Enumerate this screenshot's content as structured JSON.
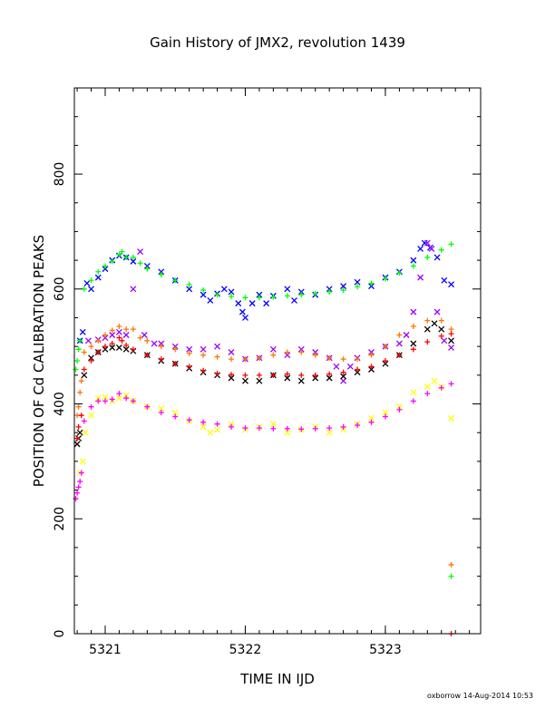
{
  "chart_data": {
    "type": "scatter",
    "title": "Gain History of JMX2, revolution 1439",
    "xlabel": "TIME IN IJD",
    "ylabel": "POSITION OF Cd CALIBRATION PEAKS",
    "xlim": [
      5320.78,
      5323.68
    ],
    "ylim": [
      0,
      950
    ],
    "x_ticks": [
      5321,
      5322,
      5323
    ],
    "y_ticks": [
      0,
      200,
      400,
      600,
      800
    ],
    "grid": false,
    "legend": "none",
    "footer": "oxborrow 14-Aug-2014 10:53",
    "series": [
      {
        "color": "#0000ff",
        "marker": "x",
        "points": [
          [
            5320.82,
            510
          ],
          [
            5320.84,
            525
          ],
          [
            5320.87,
            610
          ],
          [
            5320.9,
            600
          ],
          [
            5320.95,
            620
          ],
          [
            5321.0,
            635
          ],
          [
            5321.05,
            650
          ],
          [
            5321.1,
            658
          ],
          [
            5321.15,
            655
          ],
          [
            5321.2,
            648
          ],
          [
            5321.3,
            640
          ],
          [
            5321.4,
            630
          ],
          [
            5321.5,
            615
          ],
          [
            5321.6,
            600
          ],
          [
            5321.7,
            590
          ],
          [
            5321.75,
            580
          ],
          [
            5321.8,
            592
          ],
          [
            5321.85,
            600
          ],
          [
            5321.9,
            595
          ],
          [
            5321.95,
            575
          ],
          [
            5321.98,
            560
          ],
          [
            5322.0,
            550
          ],
          [
            5322.05,
            575
          ],
          [
            5322.1,
            590
          ],
          [
            5322.15,
            575
          ],
          [
            5322.2,
            588
          ],
          [
            5322.3,
            600
          ],
          [
            5322.35,
            580
          ],
          [
            5322.4,
            595
          ],
          [
            5322.5,
            590
          ],
          [
            5322.6,
            600
          ],
          [
            5322.7,
            605
          ],
          [
            5322.8,
            612
          ],
          [
            5322.9,
            605
          ],
          [
            5323.0,
            620
          ],
          [
            5323.1,
            630
          ],
          [
            5323.2,
            650
          ],
          [
            5323.25,
            670
          ],
          [
            5323.28,
            680
          ],
          [
            5323.32,
            672
          ],
          [
            5323.37,
            655
          ],
          [
            5323.42,
            615
          ],
          [
            5323.47,
            608
          ]
        ]
      },
      {
        "color": "#00ff00",
        "marker": "+",
        "points": [
          [
            5320.79,
            460
          ],
          [
            5320.8,
            475
          ],
          [
            5320.81,
            495
          ],
          [
            5320.82,
            510
          ],
          [
            5320.85,
            600
          ],
          [
            5320.9,
            615
          ],
          [
            5320.95,
            630
          ],
          [
            5321.0,
            640
          ],
          [
            5321.05,
            648
          ],
          [
            5321.1,
            660
          ],
          [
            5321.12,
            665
          ],
          [
            5321.15,
            655
          ],
          [
            5321.2,
            655
          ],
          [
            5321.25,
            645
          ],
          [
            5321.3,
            635
          ],
          [
            5321.4,
            625
          ],
          [
            5321.5,
            615
          ],
          [
            5321.6,
            608
          ],
          [
            5321.7,
            598
          ],
          [
            5321.8,
            590
          ],
          [
            5321.9,
            587
          ],
          [
            5322.0,
            585
          ],
          [
            5322.1,
            585
          ],
          [
            5322.2,
            586
          ],
          [
            5322.3,
            588
          ],
          [
            5322.4,
            590
          ],
          [
            5322.5,
            592
          ],
          [
            5322.6,
            595
          ],
          [
            5322.7,
            598
          ],
          [
            5322.8,
            604
          ],
          [
            5322.9,
            610
          ],
          [
            5323.0,
            618
          ],
          [
            5323.1,
            628
          ],
          [
            5323.2,
            640
          ],
          [
            5323.3,
            655
          ],
          [
            5323.4,
            668
          ],
          [
            5323.47,
            678
          ],
          [
            5323.47,
            100
          ]
        ]
      },
      {
        "color": "#9900ff",
        "marker": "x",
        "points": [
          [
            5320.88,
            510
          ],
          [
            5320.95,
            512
          ],
          [
            5321.0,
            515
          ],
          [
            5321.05,
            520
          ],
          [
            5321.1,
            525
          ],
          [
            5321.15,
            520
          ],
          [
            5321.2,
            600
          ],
          [
            5321.25,
            665
          ],
          [
            5321.28,
            520
          ],
          [
            5321.35,
            505
          ],
          [
            5321.4,
            505
          ],
          [
            5321.5,
            500
          ],
          [
            5321.6,
            495
          ],
          [
            5321.7,
            495
          ],
          [
            5321.8,
            500
          ],
          [
            5321.9,
            490
          ],
          [
            5322.0,
            478
          ],
          [
            5322.1,
            480
          ],
          [
            5322.2,
            495
          ],
          [
            5322.3,
            485
          ],
          [
            5322.4,
            495
          ],
          [
            5322.5,
            490
          ],
          [
            5322.6,
            480
          ],
          [
            5322.65,
            465
          ],
          [
            5322.7,
            440
          ],
          [
            5322.75,
            465
          ],
          [
            5322.8,
            480
          ],
          [
            5322.9,
            490
          ],
          [
            5323.0,
            500
          ],
          [
            5323.1,
            505
          ],
          [
            5323.15,
            520
          ],
          [
            5323.2,
            560
          ],
          [
            5323.25,
            620
          ],
          [
            5323.3,
            680
          ],
          [
            5323.33,
            670
          ],
          [
            5323.37,
            560
          ],
          [
            5323.42,
            510
          ],
          [
            5323.47,
            498
          ]
        ]
      },
      {
        "color": "#000000",
        "marker": "x",
        "points": [
          [
            5320.8,
            330
          ],
          [
            5320.81,
            340
          ],
          [
            5320.82,
            350
          ],
          [
            5320.85,
            450
          ],
          [
            5320.9,
            480
          ],
          [
            5320.95,
            490
          ],
          [
            5321.0,
            495
          ],
          [
            5321.05,
            498
          ],
          [
            5321.1,
            498
          ],
          [
            5321.15,
            495
          ],
          [
            5321.2,
            492
          ],
          [
            5321.3,
            485
          ],
          [
            5321.4,
            475
          ],
          [
            5321.5,
            470
          ],
          [
            5321.6,
            462
          ],
          [
            5321.7,
            455
          ],
          [
            5321.8,
            450
          ],
          [
            5321.9,
            445
          ],
          [
            5322.0,
            440
          ],
          [
            5322.1,
            440
          ],
          [
            5322.2,
            450
          ],
          [
            5322.3,
            445
          ],
          [
            5322.4,
            440
          ],
          [
            5322.5,
            445
          ],
          [
            5322.6,
            445
          ],
          [
            5322.7,
            448
          ],
          [
            5322.8,
            455
          ],
          [
            5322.9,
            460
          ],
          [
            5323.0,
            470
          ],
          [
            5323.1,
            485
          ],
          [
            5323.2,
            505
          ],
          [
            5323.3,
            530
          ],
          [
            5323.35,
            540
          ],
          [
            5323.4,
            530
          ],
          [
            5323.47,
            510
          ]
        ]
      },
      {
        "color": "#ff7700",
        "marker": "+",
        "points": [
          [
            5320.8,
            380
          ],
          [
            5320.81,
            395
          ],
          [
            5320.82,
            420
          ],
          [
            5320.83,
            440
          ],
          [
            5320.85,
            490
          ],
          [
            5320.9,
            500
          ],
          [
            5320.95,
            510
          ],
          [
            5321.0,
            520
          ],
          [
            5321.05,
            528
          ],
          [
            5321.1,
            535
          ],
          [
            5321.15,
            530
          ],
          [
            5321.2,
            530
          ],
          [
            5321.25,
            515
          ],
          [
            5321.3,
            510
          ],
          [
            5321.4,
            500
          ],
          [
            5321.5,
            495
          ],
          [
            5321.6,
            488
          ],
          [
            5321.7,
            485
          ],
          [
            5321.8,
            482
          ],
          [
            5321.9,
            478
          ],
          [
            5322.0,
            478
          ],
          [
            5322.1,
            480
          ],
          [
            5322.2,
            485
          ],
          [
            5322.3,
            490
          ],
          [
            5322.4,
            490
          ],
          [
            5322.5,
            485
          ],
          [
            5322.6,
            480
          ],
          [
            5322.7,
            478
          ],
          [
            5322.8,
            478
          ],
          [
            5322.9,
            485
          ],
          [
            5323.0,
            500
          ],
          [
            5323.1,
            520
          ],
          [
            5323.2,
            535
          ],
          [
            5323.3,
            545
          ],
          [
            5323.4,
            545
          ],
          [
            5323.47,
            530
          ],
          [
            5323.47,
            120
          ]
        ]
      },
      {
        "color": "#ff0000",
        "marker": "+",
        "points": [
          [
            5320.8,
            340
          ],
          [
            5320.81,
            360
          ],
          [
            5320.83,
            380
          ],
          [
            5320.85,
            460
          ],
          [
            5320.9,
            475
          ],
          [
            5320.95,
            490
          ],
          [
            5321.0,
            500
          ],
          [
            5321.05,
            505
          ],
          [
            5321.1,
            515
          ],
          [
            5321.12,
            510
          ],
          [
            5321.15,
            502
          ],
          [
            5321.2,
            495
          ],
          [
            5321.3,
            485
          ],
          [
            5321.4,
            478
          ],
          [
            5321.5,
            470
          ],
          [
            5321.6,
            465
          ],
          [
            5321.7,
            458
          ],
          [
            5321.8,
            453
          ],
          [
            5321.9,
            451
          ],
          [
            5322.0,
            450
          ],
          [
            5322.1,
            450
          ],
          [
            5322.2,
            450
          ],
          [
            5322.3,
            452
          ],
          [
            5322.4,
            450
          ],
          [
            5322.5,
            450
          ],
          [
            5322.6,
            452
          ],
          [
            5322.7,
            455
          ],
          [
            5322.8,
            460
          ],
          [
            5322.9,
            465
          ],
          [
            5323.0,
            475
          ],
          [
            5323.1,
            485
          ],
          [
            5323.2,
            495
          ],
          [
            5323.3,
            508
          ],
          [
            5323.4,
            518
          ],
          [
            5323.47,
            522
          ],
          [
            5323.47,
            0
          ]
        ]
      },
      {
        "color": "#ffff00",
        "marker": "x",
        "points": [
          [
            5320.82,
            280
          ],
          [
            5320.84,
            300
          ],
          [
            5320.86,
            350
          ],
          [
            5320.9,
            380
          ],
          [
            5320.95,
            410
          ],
          [
            5321.0,
            412
          ],
          [
            5321.05,
            405
          ],
          [
            5321.1,
            410
          ],
          [
            5321.15,
            415
          ],
          [
            5321.2,
            405
          ],
          [
            5321.3,
            395
          ],
          [
            5321.4,
            392
          ],
          [
            5321.5,
            385
          ],
          [
            5321.6,
            370
          ],
          [
            5321.7,
            360
          ],
          [
            5321.75,
            350
          ],
          [
            5321.8,
            355
          ],
          [
            5321.9,
            365
          ],
          [
            5322.0,
            355
          ],
          [
            5322.1,
            360
          ],
          [
            5322.2,
            365
          ],
          [
            5322.3,
            350
          ],
          [
            5322.4,
            355
          ],
          [
            5322.5,
            360
          ],
          [
            5322.6,
            350
          ],
          [
            5322.7,
            355
          ],
          [
            5322.8,
            365
          ],
          [
            5322.9,
            375
          ],
          [
            5323.0,
            385
          ],
          [
            5323.1,
            395
          ],
          [
            5323.2,
            420
          ],
          [
            5323.3,
            430
          ],
          [
            5323.35,
            440
          ],
          [
            5323.4,
            430
          ],
          [
            5323.47,
            375
          ]
        ]
      },
      {
        "color": "#ff00ff",
        "marker": "+",
        "points": [
          [
            5320.79,
            235
          ],
          [
            5320.8,
            245
          ],
          [
            5320.81,
            255
          ],
          [
            5320.82,
            265
          ],
          [
            5320.83,
            280
          ],
          [
            5320.85,
            370
          ],
          [
            5320.9,
            395
          ],
          [
            5320.95,
            405
          ],
          [
            5321.0,
            405
          ],
          [
            5321.05,
            408
          ],
          [
            5321.1,
            418
          ],
          [
            5321.15,
            410
          ],
          [
            5321.2,
            405
          ],
          [
            5321.3,
            395
          ],
          [
            5321.4,
            385
          ],
          [
            5321.5,
            378
          ],
          [
            5321.6,
            372
          ],
          [
            5321.7,
            368
          ],
          [
            5321.8,
            365
          ],
          [
            5321.9,
            360
          ],
          [
            5322.0,
            358
          ],
          [
            5322.1,
            358
          ],
          [
            5322.2,
            357
          ],
          [
            5322.3,
            357
          ],
          [
            5322.4,
            356
          ],
          [
            5322.5,
            357
          ],
          [
            5322.6,
            358
          ],
          [
            5322.7,
            360
          ],
          [
            5322.8,
            363
          ],
          [
            5322.9,
            368
          ],
          [
            5323.0,
            378
          ],
          [
            5323.1,
            390
          ],
          [
            5323.2,
            405
          ],
          [
            5323.3,
            418
          ],
          [
            5323.4,
            428
          ],
          [
            5323.47,
            435
          ]
        ]
      }
    ]
  }
}
